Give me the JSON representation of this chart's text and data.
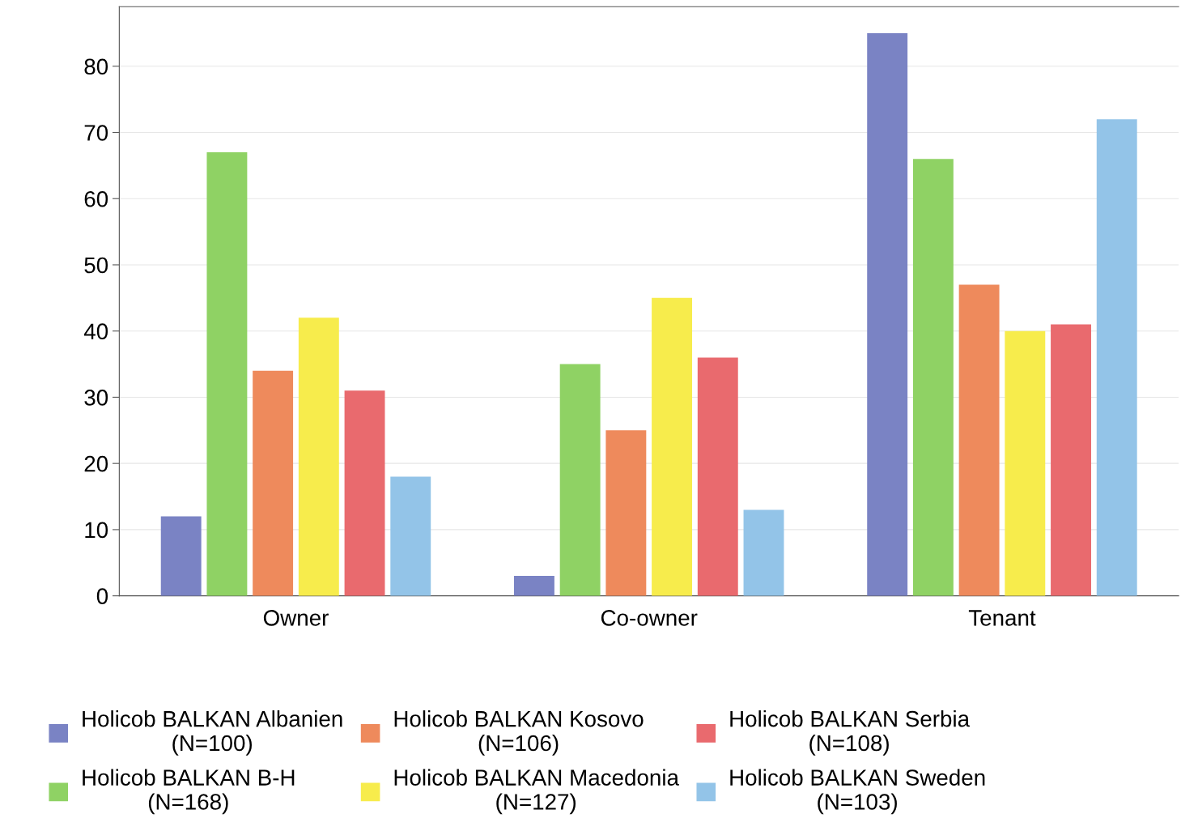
{
  "chart_data": {
    "type": "bar",
    "categories": [
      "Owner",
      "Co-owner",
      "Tenant"
    ],
    "series": [
      {
        "name": "Holicob BALKAN Albanien\n(N=100)",
        "color": "#7a83c4",
        "values": [
          12,
          3,
          85
        ]
      },
      {
        "name": "Holicob BALKAN B-H\n(N=168)",
        "color": "#8fd264",
        "values": [
          67,
          35,
          66
        ]
      },
      {
        "name": "Holicob BALKAN Kosovo\n(N=106)",
        "color": "#ee8a5c",
        "values": [
          34,
          25,
          47
        ]
      },
      {
        "name": "Holicob BALKAN Macedonia\n(N=127)",
        "color": "#f7ec4c",
        "values": [
          42,
          45,
          40
        ]
      },
      {
        "name": "Holicob BALKAN Serbia\n(N=108)",
        "color": "#e96a6e",
        "values": [
          31,
          36,
          41
        ]
      },
      {
        "name": "Holicob BALKAN Sweden\n(N=103)",
        "color": "#93c4e8",
        "values": [
          18,
          13,
          72
        ]
      }
    ],
    "ylim": [
      0,
      89
    ],
    "yticks": [
      0,
      10,
      20,
      30,
      40,
      50,
      60,
      70,
      80
    ],
    "grid": "y",
    "legend": "bottom"
  }
}
